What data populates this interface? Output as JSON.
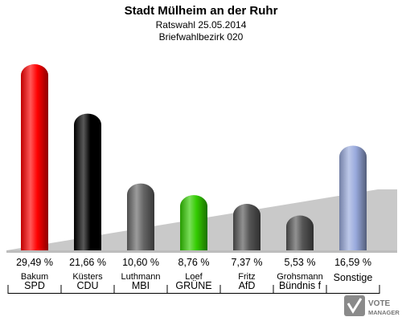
{
  "header": {
    "title": "Stadt Mülheim an der Ruhr",
    "subtitle1": "Ratswahl 25.05.2014",
    "subtitle2": "Briefwahlbezirk 020"
  },
  "chart_data": {
    "type": "bar",
    "title": "Stadt Mülheim an der Ruhr",
    "subtitle": [
      "Ratswahl 25.05.2014",
      "Briefwahlbezirk 020"
    ],
    "categories": [
      "SPD",
      "CDU",
      "MBI",
      "GRÜNE",
      "AfD",
      "Bündnis f",
      "Sonstige"
    ],
    "candidates": [
      "Bakum",
      "Küsters",
      "Luthmann",
      "Loef",
      "Fritz",
      "Grohsmann",
      ""
    ],
    "values": [
      29.49,
      21.66,
      10.6,
      8.76,
      7.37,
      5.53,
      16.59
    ],
    "value_labels": [
      "29,49 %",
      "21,66 %",
      "10,60 %",
      "8,76 %",
      "7,37 %",
      "5,53 %",
      "16,59 %"
    ],
    "colors": [
      "#ff0000",
      "#000000",
      "#666666",
      "#33cc00",
      "#555555",
      "#555555",
      "#99aadd"
    ],
    "ylim": [
      0,
      30
    ],
    "grid": false,
    "legend": "none"
  },
  "logo": {
    "line1": "VOTE",
    "line2": "MANAGER"
  }
}
